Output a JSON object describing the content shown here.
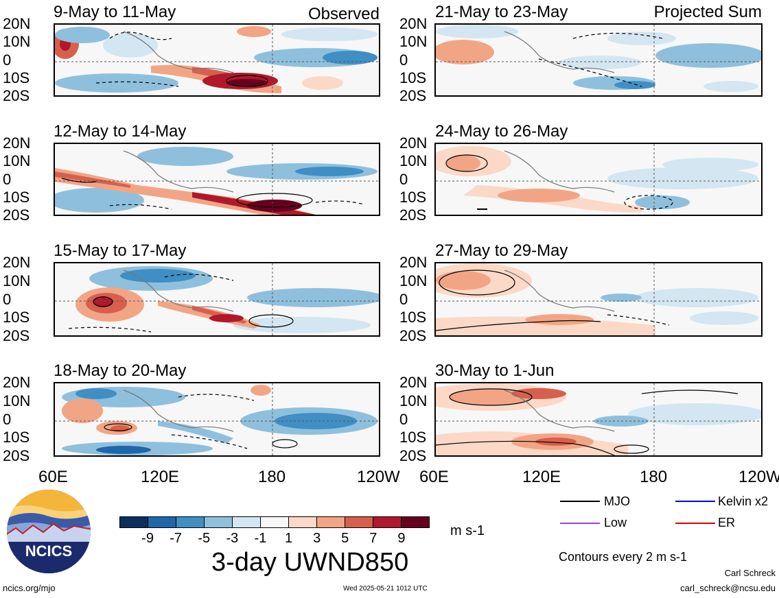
{
  "panels": [
    {
      "title": "9-May to 11-May",
      "tag": "Observed"
    },
    {
      "title": "12-May to 14-May",
      "tag": ""
    },
    {
      "title": "15-May to 17-May",
      "tag": ""
    },
    {
      "title": "18-May to 20-May",
      "tag": ""
    },
    {
      "title": "21-May to 23-May",
      "tag": "Projected Sum"
    },
    {
      "title": "24-May to 26-May",
      "tag": ""
    },
    {
      "title": "27-May to 29-May",
      "tag": ""
    },
    {
      "title": "30-May to 1-Jun",
      "tag": ""
    }
  ],
  "lat_ticks": [
    "20N",
    "10N",
    "0",
    "10S",
    "20S"
  ],
  "lon_ticks": [
    "60E",
    "120E",
    "180",
    "120W"
  ],
  "lon_ticks_right_last": "120W",
  "colorbar": {
    "labels": [
      "-9",
      "-7",
      "-5",
      "-3",
      "-1",
      "1",
      "3",
      "5",
      "7",
      "9"
    ],
    "colors": [
      "#0b2f5e",
      "#1f67ad",
      "#3f8fc4",
      "#8ec0dd",
      "#d3e6f1",
      "#f7f7f7",
      "#fbd9c6",
      "#f2a585",
      "#d6604d",
      "#b1182b",
      "#67001f"
    ],
    "units": "m s-1",
    "title": "3-day UWND850"
  },
  "legend": {
    "items": [
      {
        "label": "MJO",
        "color": "#000000"
      },
      {
        "label": "Kelvin x2",
        "color": "#0000ff"
      },
      {
        "label": "Low",
        "color": "#a040e0"
      },
      {
        "label": "ER",
        "color": "#e00000"
      }
    ],
    "note": "Contours every 2 m s-1"
  },
  "logo": {
    "text": "NCICS"
  },
  "footer": {
    "left": "ncics.org/mjo",
    "center": "Wed 2025-05-21 1012 UTC",
    "author": "Carl Schreck",
    "email": "carl_schreck@ncsu.edu"
  },
  "chart_data": {
    "type": "heatmap",
    "variable": "3-day UWND850",
    "units": "m s-1",
    "ylim": [
      "20S",
      "20N"
    ],
    "xlim": [
      "60E",
      "120W"
    ],
    "levels": [
      -9,
      -7,
      -5,
      -3,
      -1,
      1,
      3,
      5,
      7,
      9
    ],
    "panels": [
      {
        "period": "9-May to 11-May",
        "source": "Observed"
      },
      {
        "period": "12-May to 14-May",
        "source": "Observed"
      },
      {
        "period": "15-May to 17-May",
        "source": "Observed"
      },
      {
        "period": "18-May to 20-May",
        "source": "Observed"
      },
      {
        "period": "21-May to 23-May",
        "source": "Projected Sum"
      },
      {
        "period": "24-May to 26-May",
        "source": "Projected Sum"
      },
      {
        "period": "27-May to 29-May",
        "source": "Projected Sum"
      },
      {
        "period": "30-May to 1-Jun",
        "source": "Projected Sum"
      }
    ]
  }
}
